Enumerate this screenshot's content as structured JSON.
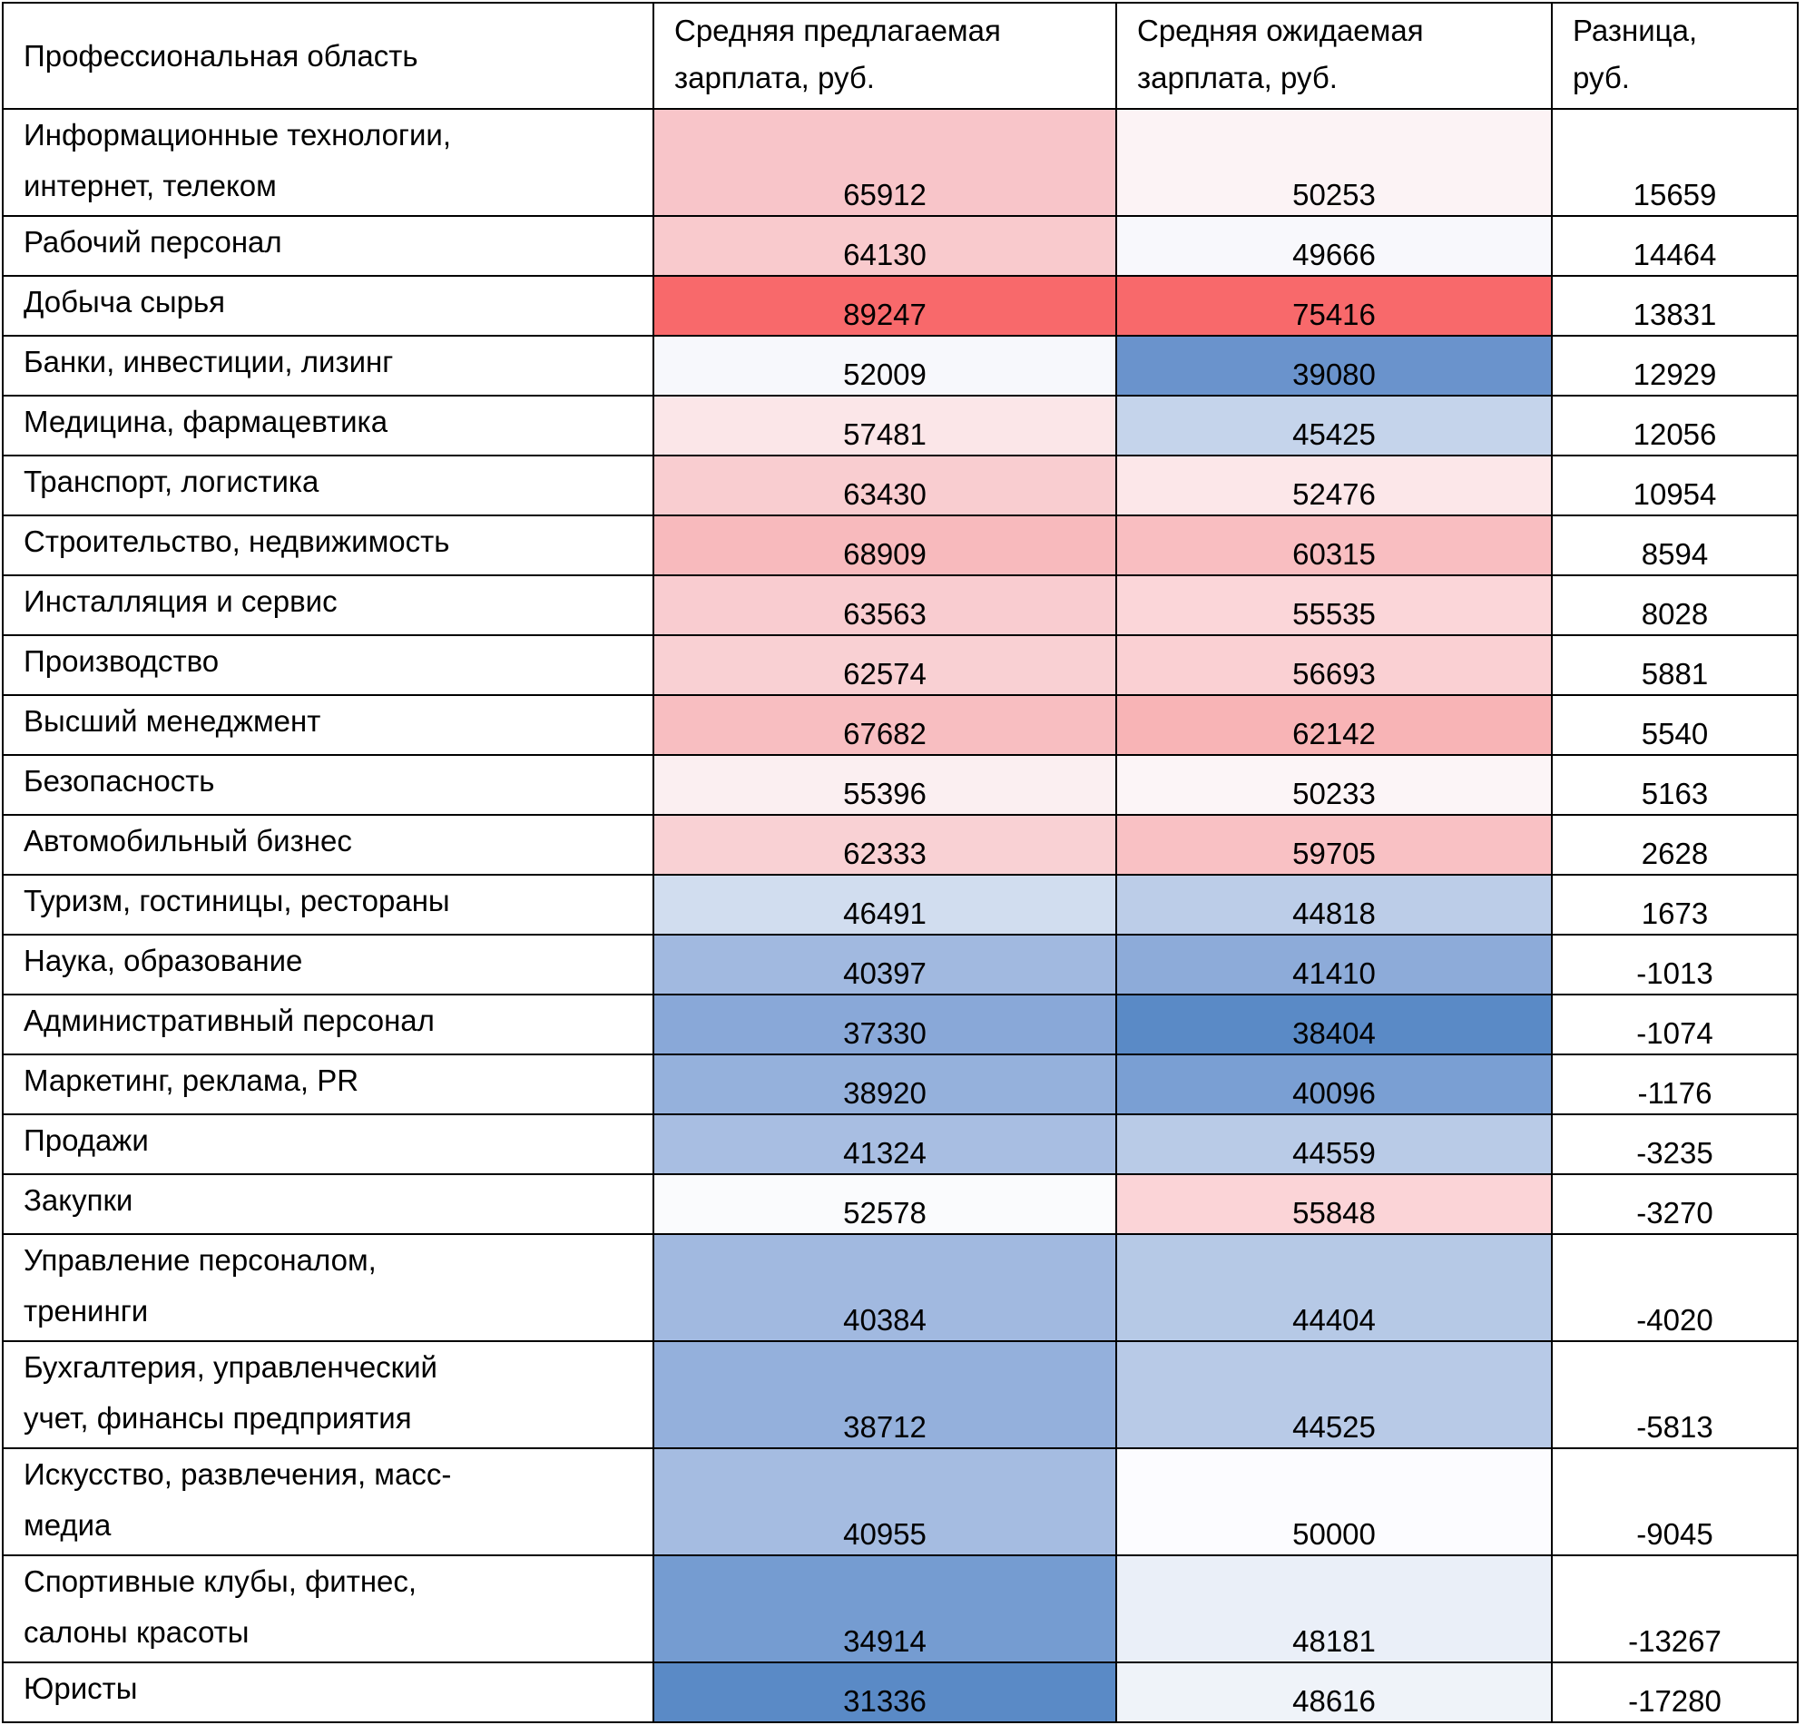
{
  "table": {
    "header": [
      [
        "Профессиональная область"
      ],
      [
        "Средняя предлагаемая",
        "зарплата, руб."
      ],
      [
        "Средняя ожидаемая",
        "зарплата, руб."
      ],
      [
        "Разница,",
        "руб."
      ]
    ],
    "rows": [
      [
        [
          "Информационные технологии,",
          "интернет, телеком"
        ],
        65912,
        50253,
        15659
      ],
      [
        [
          "Рабочий персонал"
        ],
        64130,
        49666,
        14464
      ],
      [
        [
          "Добыча сырья"
        ],
        89247,
        75416,
        13831
      ],
      [
        [
          "Банки, инвестиции, лизинг"
        ],
        52009,
        39080,
        12929
      ],
      [
        [
          "Медицина, фармацевтика"
        ],
        57481,
        45425,
        12056
      ],
      [
        [
          "Транспорт, логистика"
        ],
        63430,
        52476,
        10954
      ],
      [
        [
          "Строительство, недвижимость"
        ],
        68909,
        60315,
        8594
      ],
      [
        [
          "Инсталляция и сервис"
        ],
        63563,
        55535,
        8028
      ],
      [
        [
          "Производство"
        ],
        62574,
        56693,
        5881
      ],
      [
        [
          "Высший менеджмент"
        ],
        67682,
        62142,
        5540
      ],
      [
        [
          "Безопасность"
        ],
        55396,
        50233,
        5163
      ],
      [
        [
          "Автомобильный бизнес"
        ],
        62333,
        59705,
        2628
      ],
      [
        [
          "Туризм, гостиницы, рестораны"
        ],
        46491,
        44818,
        1673
      ],
      [
        [
          "Наука, образование"
        ],
        40397,
        41410,
        -1013
      ],
      [
        [
          "Административный персонал"
        ],
        37330,
        38404,
        -1074
      ],
      [
        [
          "Маркетинг, реклама, PR"
        ],
        38920,
        40096,
        -1176
      ],
      [
        [
          "Продажи"
        ],
        41324,
        44559,
        -3235
      ],
      [
        [
          "Закупки"
        ],
        52578,
        55848,
        -3270
      ],
      [
        [
          "Управление персоналом,",
          "тренинги"
        ],
        40384,
        44404,
        -4020
      ],
      [
        [
          "Бухгалтерия, управленческий",
          "учет, финансы предприятия"
        ],
        38712,
        44525,
        -5813
      ],
      [
        [
          "Искусство, развлечения, масс-",
          "медиа"
        ],
        40955,
        50000,
        -9045
      ],
      [
        [
          "Спортивные клубы, фитнес,",
          "салоны красоты"
        ],
        34914,
        48181,
        -13267
      ],
      [
        [
          "Юристы"
        ],
        31336,
        48616,
        -17280
      ]
    ],
    "cell_colors": [
      [
        "#f8c5c9",
        "#fcf3f5"
      ],
      [
        "#f9cacd",
        "#f8f8fc"
      ],
      [
        "#f8696b",
        "#f8696b"
      ],
      [
        "#f7f8fc",
        "#6a93cc"
      ],
      [
        "#fbe6e8",
        "#c5d4eb"
      ],
      [
        "#f9cdd0",
        "#fce7e9"
      ],
      [
        "#f8babd",
        "#f9bec1"
      ],
      [
        "#f9ccd0",
        "#fbd6d9"
      ],
      [
        "#f9d0d3",
        "#fad0d3"
      ],
      [
        "#f8bec1",
        "#f8b4b6"
      ],
      [
        "#fbeff1",
        "#fcf5f7"
      ],
      [
        "#f9d1d4",
        "#f9c1c4"
      ],
      [
        "#d1ddef",
        "#bccde8"
      ],
      [
        "#a1b9e0",
        "#8dabd9"
      ],
      [
        "#89a8d8",
        "#5a8ac6"
      ],
      [
        "#95b1dc",
        "#7a9fd3"
      ],
      [
        "#a8bee2",
        "#b9cbe7"
      ],
      [
        "#fafbfd",
        "#fbd4d7"
      ],
      [
        "#a1b9e0",
        "#b6c9e6"
      ],
      [
        "#94b0dc",
        "#b8cae7"
      ],
      [
        "#a5bce1",
        "#fcfcff"
      ],
      [
        "#759cd1",
        "#eaeff8"
      ],
      [
        "#5a8ac6",
        "#eff3f9"
      ]
    ]
  }
}
